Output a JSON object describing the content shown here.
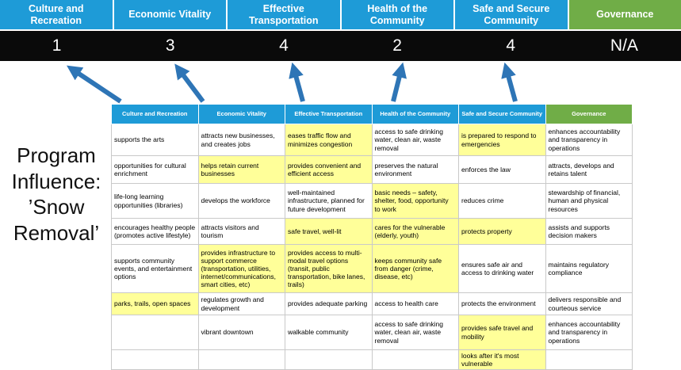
{
  "title": "Program Influence: ’Snow Removal’",
  "categories": [
    {
      "label": "Culture and Recreation",
      "score": "1"
    },
    {
      "label": "Economic Vitality",
      "score": "3"
    },
    {
      "label": "Effective Transportation",
      "score": "4"
    },
    {
      "label": "Health of the Community",
      "score": "2"
    },
    {
      "label": "Safe and Secure Community",
      "score": "4"
    },
    {
      "label": "Governance",
      "score": "N/A"
    }
  ],
  "colors": {
    "header_blue": "#1E9BD7",
    "header_green": "#70AD47",
    "score_band": "#0A0A0A",
    "arrow_blue": "#2E75B6",
    "highlight_yellow": "#FFFF99"
  },
  "table": {
    "rows": [
      [
        {
          "t": "supports the arts",
          "hl": false
        },
        {
          "t": "attracts new businesses, and creates jobs",
          "hl": false
        },
        {
          "t": "eases traffic flow and minimizes congestion",
          "hl": true
        },
        {
          "t": "access to safe drinking water, clean air, waste removal",
          "hl": false
        },
        {
          "t": "is prepared to respond to emergencies",
          "hl": true
        },
        {
          "t": "enhances accountability and transparency in operations",
          "hl": false
        }
      ],
      [
        {
          "t": "opportunities for cultural enrichment",
          "hl": false
        },
        {
          "t": "helps retain current businesses",
          "hl": true
        },
        {
          "t": "provides convenient and efficient access",
          "hl": true
        },
        {
          "t": "preserves the natural environment",
          "hl": false
        },
        {
          "t": "enforces the law",
          "hl": false
        },
        {
          "t": "attracts, develops and retains talent",
          "hl": false
        }
      ],
      [
        {
          "t": "life-long learning opportunities (libraries)",
          "hl": false
        },
        {
          "t": "develops the workforce",
          "hl": false
        },
        {
          "t": "well-maintained infrastructure, planned for future development",
          "hl": false
        },
        {
          "t": "basic needs – safety, shelter, food, opportunity to work",
          "hl": true
        },
        {
          "t": "reduces crime",
          "hl": false
        },
        {
          "t": "stewardship of financial, human and physical resources",
          "hl": false
        }
      ],
      [
        {
          "t": "encourages healthy people (promotes active lifestyle)",
          "hl": false
        },
        {
          "t": "attracts visitors and tourism",
          "hl": false
        },
        {
          "t": "safe travel, well-lit",
          "hl": true
        },
        {
          "t": "cares for the vulnerable (elderly, youth)",
          "hl": true
        },
        {
          "t": "protects property",
          "hl": true
        },
        {
          "t": "assists and supports decision makers",
          "hl": false
        }
      ],
      [
        {
          "t": "supports community events, and entertainment options",
          "hl": false
        },
        {
          "t": "provides infrastructure to support commerce (transportation, utilities, internet/communications, smart cities, etc)",
          "hl": true
        },
        {
          "t": "provides access to multi-modal travel options (transit, public transportation, bike lanes, trails)",
          "hl": true
        },
        {
          "t": "keeps community safe from danger (crime, disease, etc)",
          "hl": true
        },
        {
          "t": "ensures safe air and access to drinking water",
          "hl": false
        },
        {
          "t": "maintains regulatory compliance",
          "hl": false
        }
      ],
      [
        {
          "t": "parks, trails, open spaces",
          "hl": true
        },
        {
          "t": "regulates growth and development",
          "hl": false
        },
        {
          "t": "provides adequate parking",
          "hl": false
        },
        {
          "t": "access to health care",
          "hl": false
        },
        {
          "t": "protects the environment",
          "hl": false
        },
        {
          "t": "delivers responsible and courteous service",
          "hl": false
        }
      ],
      [
        {
          "t": "",
          "hl": false
        },
        {
          "t": "vibrant downtown",
          "hl": false
        },
        {
          "t": "walkable community",
          "hl": false
        },
        {
          "t": "access to safe drinking water, clean air, waste removal",
          "hl": false
        },
        {
          "t": "provides safe travel and mobility",
          "hl": true
        },
        {
          "t": "enhances accountability and transparency in operations",
          "hl": false
        }
      ],
      [
        {
          "t": "",
          "hl": false
        },
        {
          "t": "",
          "hl": false
        },
        {
          "t": "",
          "hl": false
        },
        {
          "t": "",
          "hl": false
        },
        {
          "t": "looks after it's most vulnerable",
          "hl": true
        },
        {
          "t": "",
          "hl": false
        }
      ]
    ]
  }
}
